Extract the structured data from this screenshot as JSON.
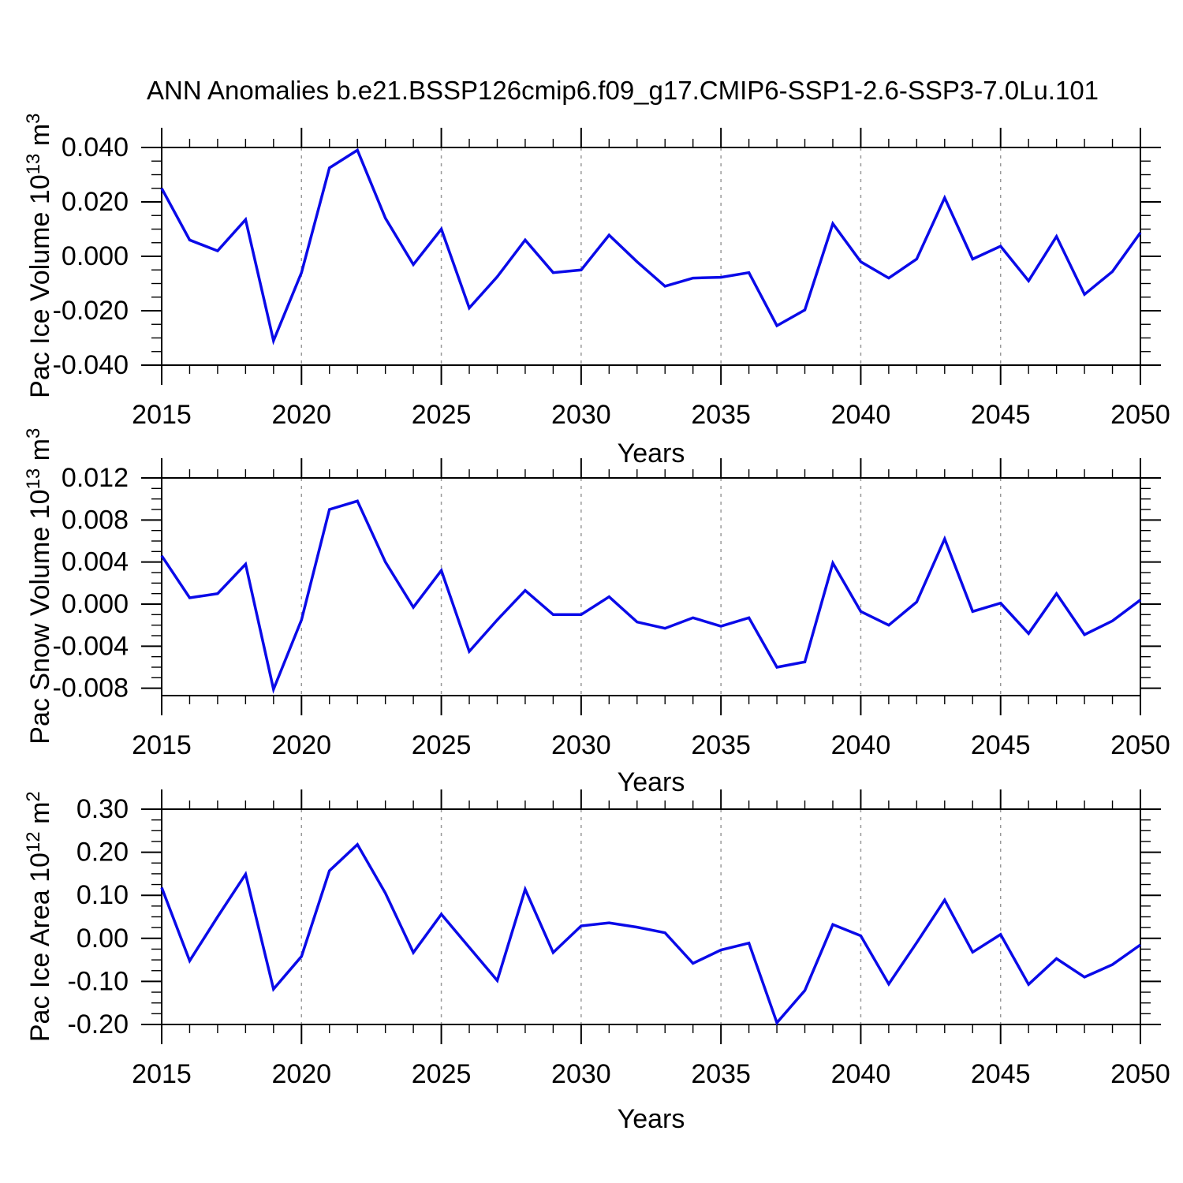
{
  "title": "ANN Anomalies b.e21.BSSP126cmip6.f09_g17.CMIP6-SSP1-2.6-SSP3-7.0Lu.101",
  "colors": {
    "line": "#0a0ae8",
    "grid": "#999999",
    "axis": "#000000",
    "text": "#000000",
    "background": "#ffffff"
  },
  "chart_data": [
    {
      "type": "line",
      "series_name": "Pac Ice Volume anomaly",
      "xlabel": "Years",
      "ylabel_text": "Pac Ice Volume 10^13 m^3",
      "ylabel_parts": {
        "pre": "Pac Ice Volume 10",
        "sup1": "13",
        "mid": " m",
        "sup2": "3"
      },
      "ylim": [
        -0.04,
        0.04
      ],
      "yticks": [
        0.04,
        0.02,
        0.0,
        -0.02,
        -0.04
      ],
      "ytick_labels": [
        "0.040",
        "0.020",
        "0.000",
        "-0.020",
        "-0.040"
      ],
      "yminor_step": 0.005,
      "xlim": [
        2015,
        2050
      ],
      "xticks": [
        2015,
        2020,
        2025,
        2030,
        2035,
        2040,
        2045,
        2050
      ],
      "xminor_step": 1,
      "grid_years": [
        2020,
        2025,
        2030,
        2035,
        2040,
        2045
      ],
      "grid_style": "vertical-dashed",
      "legend": "none",
      "x": [
        2015,
        2016,
        2017,
        2018,
        2019,
        2020,
        2021,
        2022,
        2023,
        2024,
        2025,
        2026,
        2027,
        2028,
        2029,
        2030,
        2031,
        2032,
        2033,
        2034,
        2035,
        2036,
        2037,
        2038,
        2039,
        2040,
        2041,
        2042,
        2043,
        2044,
        2045,
        2046,
        2047,
        2048,
        2049,
        2050
      ],
      "values": [
        0.025,
        0.006,
        0.002,
        0.0135,
        -0.031,
        -0.006,
        0.0325,
        0.039,
        0.014,
        -0.003,
        0.01,
        -0.019,
        -0.0075,
        0.006,
        -0.006,
        -0.005,
        0.0078,
        -0.002,
        -0.011,
        -0.008,
        -0.0077,
        -0.006,
        -0.0255,
        -0.0197,
        0.012,
        -0.002,
        -0.008,
        -0.001,
        0.0215,
        -0.001,
        0.0037,
        -0.009,
        0.0073,
        -0.014,
        -0.0056,
        0.0087
      ]
    },
    {
      "type": "line",
      "series_name": "Pac Snow Volume anomaly",
      "xlabel": "Years",
      "ylabel_text": "Pac Snow Volume 10^13 m^3",
      "ylabel_parts": {
        "pre": "Pac Snow Volume 10",
        "sup1": "13",
        "mid": " m",
        "sup2": "3"
      },
      "ylim": [
        -0.0087,
        0.012
      ],
      "yticks": [
        0.012,
        0.008,
        0.004,
        0.0,
        -0.004,
        -0.008
      ],
      "ytick_labels": [
        "0.012",
        "0.008",
        "0.004",
        "0.000",
        "-0.004",
        "-0.008"
      ],
      "yminor_step": 0.001,
      "xlim": [
        2015,
        2050
      ],
      "xticks": [
        2015,
        2020,
        2025,
        2030,
        2035,
        2040,
        2045,
        2050
      ],
      "xminor_step": 1,
      "grid_years": [
        2020,
        2025,
        2030,
        2035,
        2040,
        2045
      ],
      "grid_style": "vertical-dashed",
      "legend": "none",
      "x": [
        2015,
        2016,
        2017,
        2018,
        2019,
        2020,
        2021,
        2022,
        2023,
        2024,
        2025,
        2026,
        2027,
        2028,
        2029,
        2030,
        2031,
        2032,
        2033,
        2034,
        2035,
        2036,
        2037,
        2038,
        2039,
        2040,
        2041,
        2042,
        2043,
        2044,
        2045,
        2046,
        2047,
        2048,
        2049,
        2050
      ],
      "values": [
        0.0046,
        0.0006,
        0.001,
        0.0038,
        -0.0081,
        -0.0015,
        0.009,
        0.0098,
        0.004,
        -0.0003,
        0.0032,
        -0.0045,
        -0.0015,
        0.0013,
        -0.001,
        -0.001,
        0.0007,
        -0.0017,
        -0.0023,
        -0.0013,
        -0.0021,
        -0.0013,
        -0.006,
        -0.0055,
        0.0039,
        -0.0007,
        -0.002,
        0.0002,
        0.0062,
        -0.0007,
        0.0001,
        -0.0028,
        0.001,
        -0.0029,
        -0.0016,
        0.0004
      ]
    },
    {
      "type": "line",
      "series_name": "Pac Ice Area anomaly",
      "xlabel": "Years",
      "ylabel_text": "Pac Ice Area 10^12 m^2",
      "ylabel_parts": {
        "pre": "Pac Ice Area 10",
        "sup1": "12",
        "mid": " m",
        "sup2": "2"
      },
      "ylim": [
        -0.2,
        0.3
      ],
      "yticks": [
        0.3,
        0.2,
        0.1,
        0.0,
        -0.1,
        -0.2
      ],
      "ytick_labels": [
        "0.30",
        "0.20",
        "0.10",
        "0.00",
        "-0.10",
        "-0.20"
      ],
      "yminor_step": 0.025,
      "xlim": [
        2015,
        2050
      ],
      "xticks": [
        2015,
        2020,
        2025,
        2030,
        2035,
        2040,
        2045,
        2050
      ],
      "xminor_step": 1,
      "grid_years": [
        2020,
        2025,
        2030,
        2035,
        2040,
        2045
      ],
      "grid_style": "vertical-dashed",
      "legend": "none",
      "x": [
        2015,
        2016,
        2017,
        2018,
        2019,
        2020,
        2021,
        2022,
        2023,
        2024,
        2025,
        2026,
        2027,
        2028,
        2029,
        2030,
        2031,
        2032,
        2033,
        2034,
        2035,
        2036,
        2037,
        2038,
        2039,
        2040,
        2041,
        2042,
        2043,
        2044,
        2045,
        2046,
        2047,
        2048,
        2049,
        2050
      ],
      "values": [
        0.118,
        -0.052,
        0.05,
        0.149,
        -0.118,
        -0.042,
        0.157,
        0.218,
        0.105,
        -0.033,
        0.056,
        -0.021,
        -0.098,
        0.114,
        -0.033,
        0.029,
        0.036,
        0.026,
        0.013,
        -0.058,
        -0.027,
        -0.011,
        -0.196,
        -0.121,
        0.032,
        0.006,
        -0.106,
        -0.01,
        0.089,
        -0.032,
        0.009,
        -0.107,
        -0.047,
        -0.09,
        -0.061,
        -0.015
      ]
    }
  ]
}
